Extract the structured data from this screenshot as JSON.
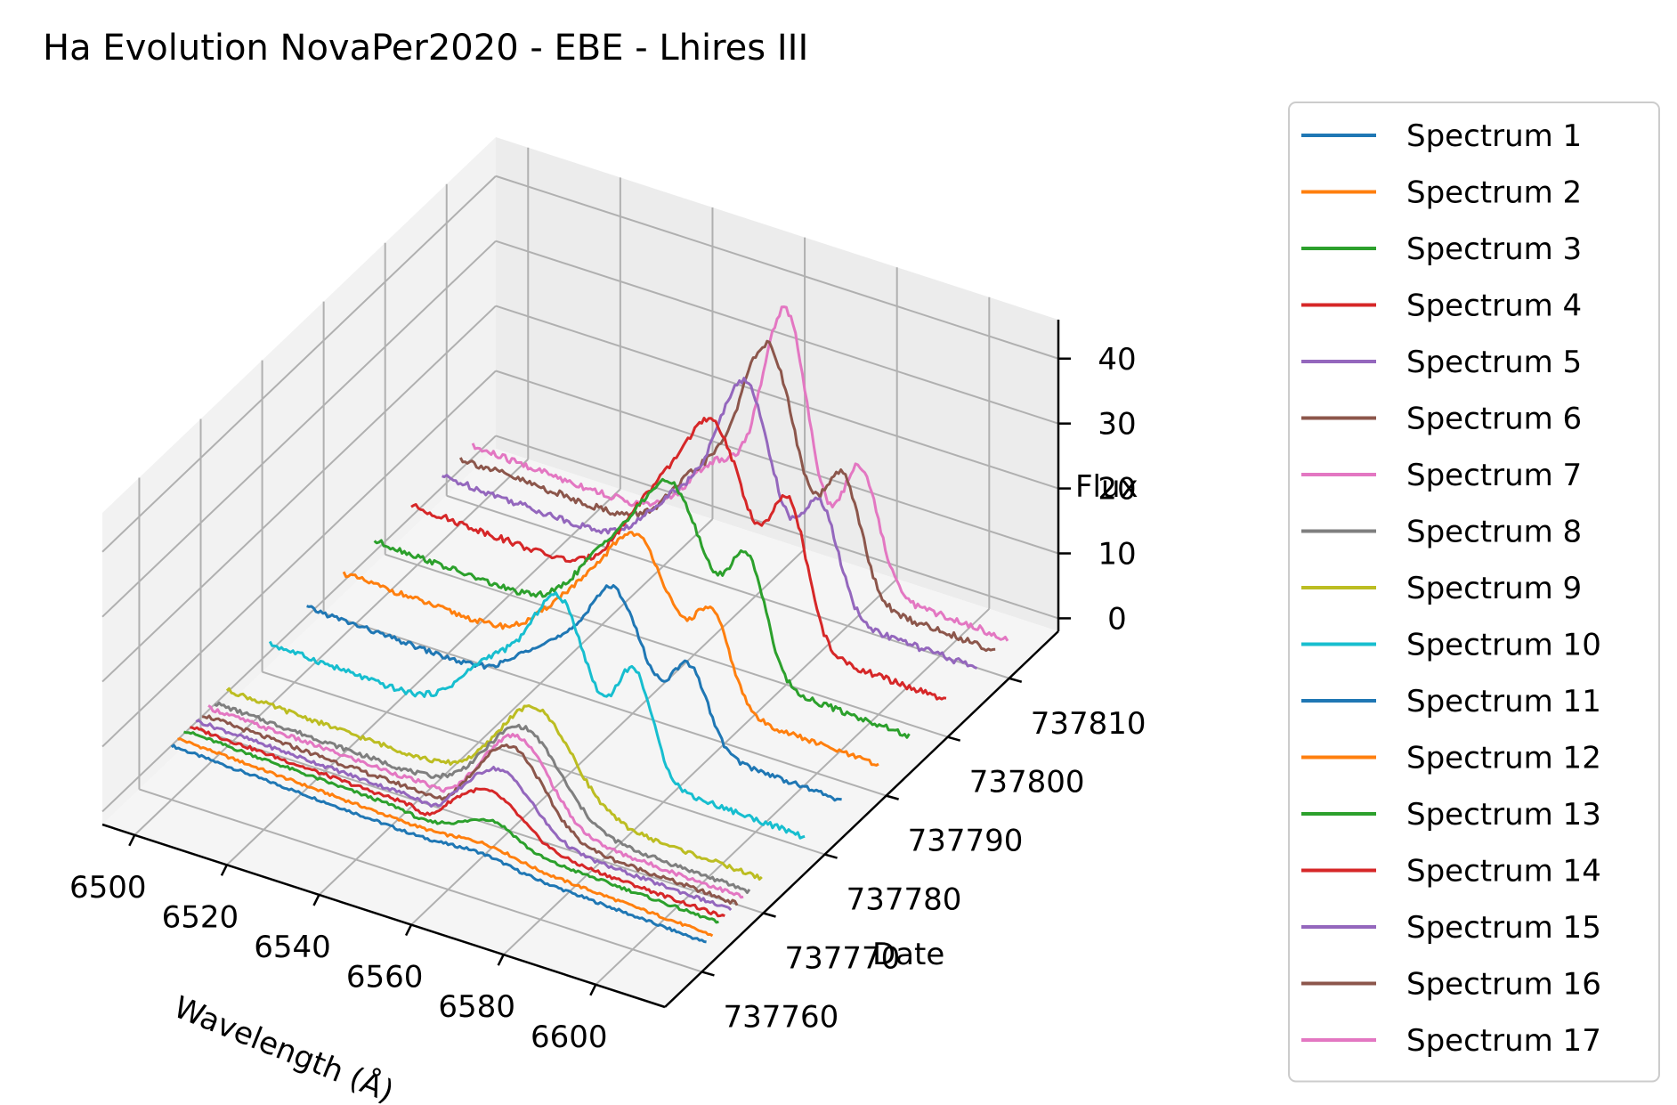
{
  "chart_data": {
    "type": "line",
    "projection": "3d",
    "title": "Ha Evolution NovaPer2020 - EBE - Lhires III",
    "xlabel": "Wavelength (Å)",
    "ylabel": "Date",
    "zlabel": "Flux",
    "x_ticks": [
      "6500",
      "6520",
      "6540",
      "6560",
      "6580",
      "6600"
    ],
    "y_ticks": [
      "737760",
      "737770",
      "737780",
      "737790",
      "737800",
      "737810"
    ],
    "z_ticks": [
      "0",
      "10",
      "20",
      "30",
      "40"
    ],
    "xlim": [
      6493,
      6615
    ],
    "ylim": [
      737754,
      737818
    ],
    "zlim": [
      -2,
      46
    ],
    "grid": true,
    "legend_position": "right",
    "series_colors": [
      "#1f77b4",
      "#ff7f0e",
      "#2ca02c",
      "#d62728",
      "#9467bd",
      "#8c564b",
      "#e377c2",
      "#7f7f7f",
      "#bcbd22",
      "#17becf",
      "#1f77b4",
      "#ff7f0e",
      "#2ca02c",
      "#d62728",
      "#9467bd",
      "#8c564b",
      "#e377c2"
    ],
    "series": [
      {
        "name": "Spectrum 1",
        "date": 737763,
        "continuum": [
          2.8,
          -1.0
        ],
        "peak": 1.0,
        "center": 6563,
        "width": 6,
        "plateau": 0,
        "dip": 0
      },
      {
        "name": "Spectrum 2",
        "date": 737764,
        "continuum": [
          3.0,
          -0.8
        ],
        "peak": 1.2,
        "center": 6563,
        "width": 6,
        "plateau": 0,
        "dip": 0
      },
      {
        "name": "Spectrum 3",
        "date": 737765,
        "continuum": [
          3.3,
          0.3
        ],
        "peak": 3.2,
        "center": 6563,
        "width": 5,
        "plateau": 0,
        "dip": -0.6
      },
      {
        "name": "Spectrum 4",
        "date": 737766,
        "continuum": [
          3.0,
          0.2
        ],
        "peak": 6.5,
        "center": 6561,
        "width": 7,
        "plateau": 0,
        "dip": -1.5
      },
      {
        "name": "Spectrum 5",
        "date": 737767,
        "continuum": [
          3.0,
          0.5
        ],
        "peak": 9.0,
        "center": 6562,
        "width": 7,
        "plateau": 0,
        "dip": -1.2
      },
      {
        "name": "Spectrum 6",
        "date": 737768,
        "continuum": [
          3.0,
          0.5
        ],
        "peak": 12.0,
        "center": 6563,
        "width": 7,
        "plateau": 0,
        "dip": -1.0
      },
      {
        "name": "Spectrum 7",
        "date": 737769,
        "continuum": [
          3.2,
          0.6
        ],
        "peak": 12.5,
        "center": 6563,
        "width": 7,
        "plateau": 0,
        "dip": -0.8
      },
      {
        "name": "Spectrum 8",
        "date": 737770,
        "continuum": [
          3.0,
          0.6
        ],
        "peak": 13.0,
        "center": 6563,
        "width": 8,
        "plateau": 0,
        "dip": 0
      },
      {
        "name": "Spectrum 9",
        "date": 737772,
        "continuum": [
          3.2,
          0.8
        ],
        "peak": 14.0,
        "center": 6563,
        "width": 8,
        "plateau": 0,
        "dip": 0
      },
      {
        "name": "Spectrum 10",
        "date": 737779,
        "continuum": [
          4.0,
          0.8
        ],
        "peak": 22.0,
        "center": 6559,
        "width": 6,
        "plateau": 0.8,
        "dip": 0
      },
      {
        "name": "Spectrum 11",
        "date": 737785,
        "continuum": [
          4.2,
          1.0
        ],
        "peak": 19.0,
        "center": 6563,
        "width": 6,
        "plateau": 0.7,
        "dip": 0
      },
      {
        "name": "Spectrum 12",
        "date": 737791,
        "continuum": [
          4.0,
          1.0
        ],
        "peak": 21.0,
        "center": 6560,
        "width": 7,
        "plateau": 0.7,
        "dip": 0
      },
      {
        "name": "Spectrum 13",
        "date": 737796,
        "continuum": [
          4.5,
          1.0
        ],
        "peak": 24.0,
        "center": 6561,
        "width": 7,
        "plateau": 0.8,
        "dip": 0
      },
      {
        "name": "Spectrum 14",
        "date": 737802,
        "continuum": [
          4.5,
          1.0
        ],
        "peak": 28.0,
        "center": 6562,
        "width": 7,
        "plateau": 0.8,
        "dip": 0
      },
      {
        "name": "Spectrum 15",
        "date": 737807,
        "continuum": [
          4.5,
          1.5
        ],
        "peak": 30.0,
        "center": 6562,
        "width": 6,
        "plateau": 0.6,
        "dip": 0
      },
      {
        "name": "Spectrum 16",
        "date": 737810,
        "continuum": [
          4.5,
          1.5
        ],
        "peak": 33.0,
        "center": 6563,
        "width": 6,
        "plateau": 0.6,
        "dip": 0
      },
      {
        "name": "Spectrum 17",
        "date": 737812,
        "continuum": [
          4.5,
          1.5
        ],
        "peak": 37.0,
        "center": 6564,
        "width": 5,
        "plateau": 0.55,
        "dip": 0
      }
    ]
  }
}
